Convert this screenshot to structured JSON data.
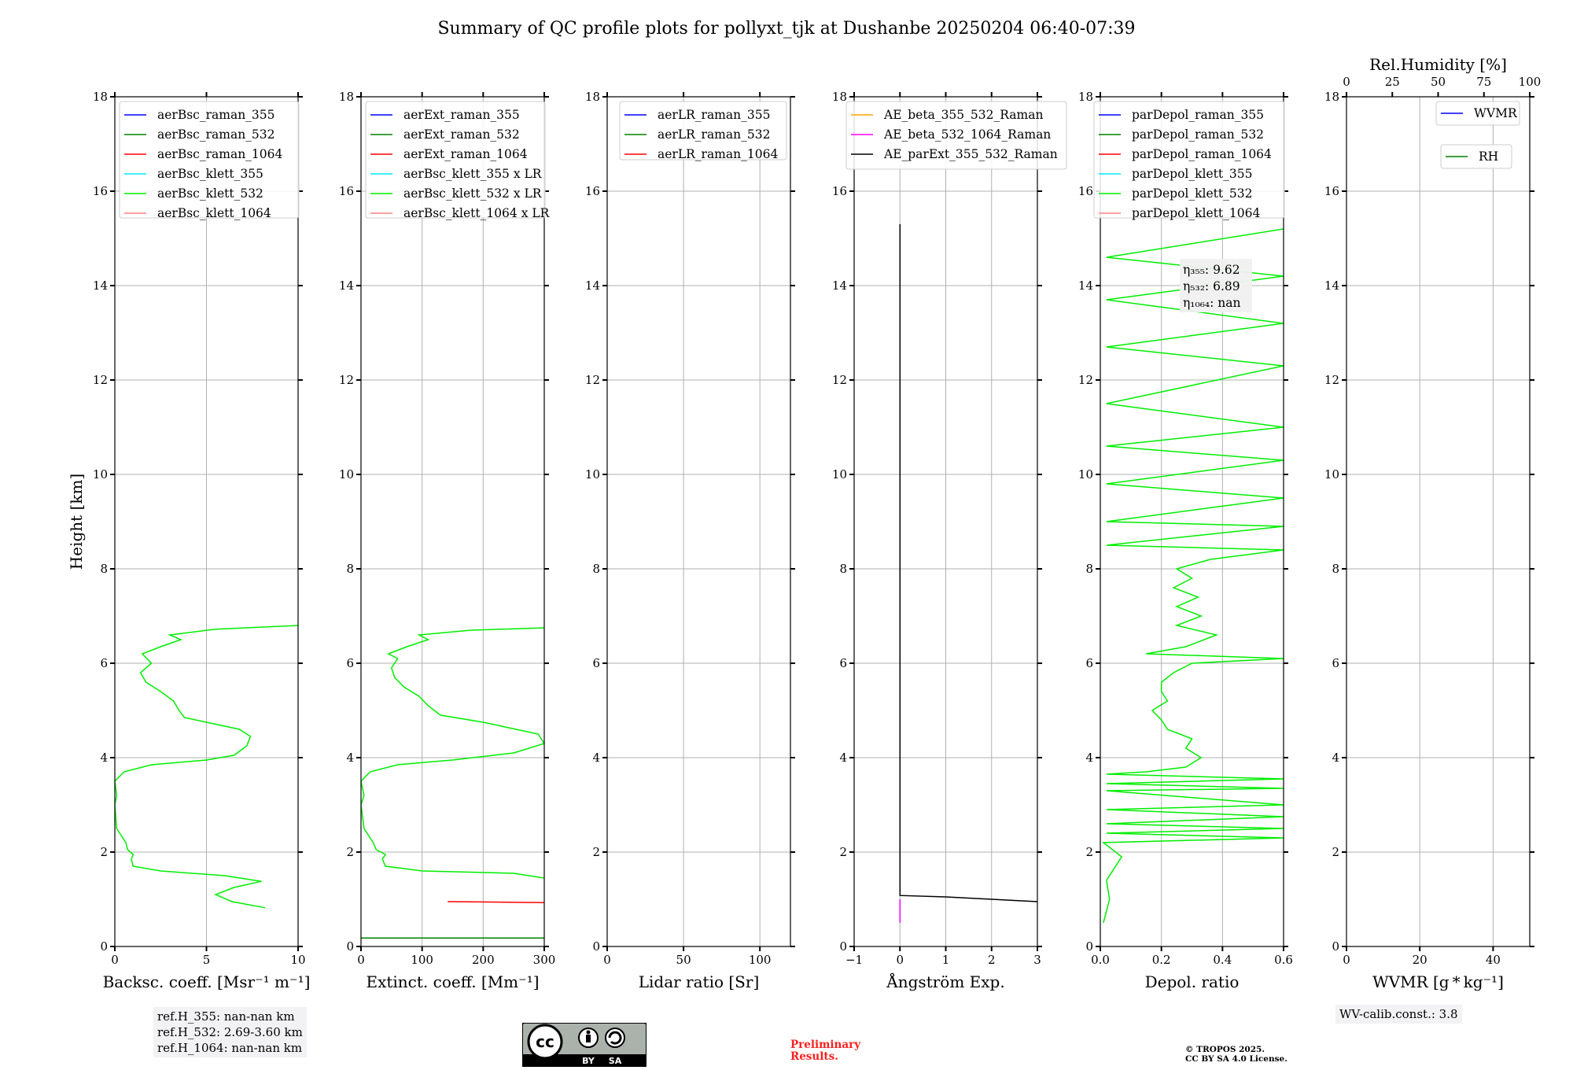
{
  "title": "Summary of QC profile plots for pollyxt_tjk at Dushanbe 20250204 06:40-07:39",
  "chart_data": [
    {
      "type": "line",
      "xlabel": "Backsc. coeff. [Msr⁻¹ m⁻¹]",
      "ylabel": "Height [km]",
      "xlim": [
        0,
        10
      ],
      "ylim": [
        0,
        18
      ],
      "xticks": [
        0,
        5,
        10
      ],
      "yticks": [
        0,
        2,
        4,
        6,
        8,
        10,
        12,
        14,
        16,
        18
      ],
      "grid": true,
      "legend": "top-left",
      "series": [
        {
          "name": "aerBsc_raman_355",
          "color": "#0000ff",
          "points": []
        },
        {
          "name": "aerBsc_raman_532",
          "color": "#008000",
          "points": []
        },
        {
          "name": "aerBsc_raman_1064",
          "color": "#ff0000",
          "points": []
        },
        {
          "name": "aerBsc_klett_355",
          "color": "#00e5ff",
          "points": []
        },
        {
          "name": "aerBsc_klett_532",
          "color": "#00ee00",
          "points": [
            [
              8.2,
              0.82
            ],
            [
              6.4,
              0.95
            ],
            [
              5.5,
              1.1
            ],
            [
              6.5,
              1.25
            ],
            [
              8.0,
              1.38
            ],
            [
              6.0,
              1.5
            ],
            [
              2.5,
              1.6
            ],
            [
              1.0,
              1.7
            ],
            [
              0.9,
              1.85
            ],
            [
              1.0,
              1.95
            ],
            [
              0.7,
              2.05
            ],
            [
              0.6,
              2.2
            ],
            [
              0.1,
              2.5
            ],
            [
              0.0,
              3.0
            ],
            [
              0.1,
              3.2
            ],
            [
              0.0,
              3.5
            ],
            [
              0.5,
              3.7
            ],
            [
              2.0,
              3.85
            ],
            [
              5.0,
              3.95
            ],
            [
              6.5,
              4.05
            ],
            [
              7.2,
              4.25
            ],
            [
              7.4,
              4.45
            ],
            [
              6.8,
              4.6
            ],
            [
              5.0,
              4.75
            ],
            [
              3.8,
              4.85
            ],
            [
              3.5,
              5.0
            ],
            [
              3.2,
              5.2
            ],
            [
              2.5,
              5.4
            ],
            [
              1.7,
              5.6
            ],
            [
              1.4,
              5.8
            ],
            [
              2.0,
              6.0
            ],
            [
              1.5,
              6.2
            ],
            [
              2.5,
              6.35
            ],
            [
              3.6,
              6.5
            ],
            [
              3.0,
              6.6
            ],
            [
              5.5,
              6.72
            ],
            [
              10.0,
              6.8
            ]
          ]
        },
        {
          "name": "aerBsc_klett_1064",
          "color": "#ff8080",
          "points": []
        }
      ]
    },
    {
      "type": "line",
      "xlabel": "Extinct. coeff. [Mm⁻¹]",
      "xlim": [
        0,
        300
      ],
      "ylim": [
        0,
        18
      ],
      "xticks": [
        0,
        100,
        200,
        300
      ],
      "yticks": [
        0,
        2,
        4,
        6,
        8,
        10,
        12,
        14,
        16,
        18
      ],
      "grid": true,
      "legend": "top-left",
      "series": [
        {
          "name": "aerExt_raman_355",
          "color": "#0000ff",
          "points": []
        },
        {
          "name": "aerExt_raman_532",
          "color": "#008000",
          "points": [
            [
              0,
              0.18
            ],
            [
              300,
              0.18
            ]
          ]
        },
        {
          "name": "aerExt_raman_1064",
          "color": "#ff0000",
          "points": [
            [
              142,
              0.95
            ],
            [
              300,
              0.93
            ]
          ]
        },
        {
          "name": "aerBsc_klett_355 x LR",
          "color": "#00e5ff",
          "points": []
        },
        {
          "name": "aerBsc_klett_532 x LR",
          "color": "#00ee00",
          "points": [
            [
              300,
              1.45
            ],
            [
              250,
              1.55
            ],
            [
              100,
              1.6
            ],
            [
              40,
              1.7
            ],
            [
              35,
              1.85
            ],
            [
              40,
              1.95
            ],
            [
              25,
              2.05
            ],
            [
              20,
              2.2
            ],
            [
              5,
              2.5
            ],
            [
              0,
              3.0
            ],
            [
              5,
              3.2
            ],
            [
              0,
              3.5
            ],
            [
              15,
              3.7
            ],
            [
              60,
              3.85
            ],
            [
              150,
              3.95
            ],
            [
              250,
              4.1
            ],
            [
              300,
              4.3
            ],
            [
              290,
              4.5
            ],
            [
              200,
              4.75
            ],
            [
              130,
              4.9
            ],
            [
              110,
              5.1
            ],
            [
              95,
              5.3
            ],
            [
              70,
              5.5
            ],
            [
              55,
              5.7
            ],
            [
              50,
              5.9
            ],
            [
              60,
              6.1
            ],
            [
              45,
              6.2
            ],
            [
              75,
              6.35
            ],
            [
              110,
              6.5
            ],
            [
              95,
              6.6
            ],
            [
              180,
              6.7
            ],
            [
              300,
              6.75
            ]
          ]
        },
        {
          "name": "aerBsc_klett_1064 x LR",
          "color": "#ff8080",
          "points": []
        }
      ]
    },
    {
      "type": "line",
      "xlabel": "Lidar ratio [Sr]",
      "xlim": [
        0,
        120
      ],
      "ylim": [
        0,
        18
      ],
      "xticks": [
        0,
        50,
        100
      ],
      "yticks": [
        0,
        2,
        4,
        6,
        8,
        10,
        12,
        14,
        16,
        18
      ],
      "grid": true,
      "legend": "top-left",
      "series": [
        {
          "name": "aerLR_raman_355",
          "color": "#0000ff",
          "points": []
        },
        {
          "name": "aerLR_raman_532",
          "color": "#008000",
          "points": []
        },
        {
          "name": "aerLR_raman_1064",
          "color": "#ff0000",
          "points": []
        }
      ]
    },
    {
      "type": "line",
      "xlabel": "Ångström Exp.",
      "xlim": [
        -1,
        3
      ],
      "ylim": [
        0,
        18
      ],
      "xticks": [
        -1,
        0,
        1,
        2,
        3
      ],
      "yticks": [
        0,
        2,
        4,
        6,
        8,
        10,
        12,
        14,
        16,
        18
      ],
      "grid": true,
      "legend": "top-left",
      "series": [
        {
          "name": "AE_beta_355_532_Raman",
          "color": "#ffa500",
          "points": []
        },
        {
          "name": "AE_beta_532_1064_Raman",
          "color": "#ff00ff",
          "points": [
            [
              0,
              0.5
            ],
            [
              0,
              1.0
            ]
          ]
        },
        {
          "name": "AE_parExt_355_532_Raman",
          "color": "#000000",
          "points": [
            [
              0,
              15.3
            ],
            [
              0,
              1.08
            ],
            [
              1.0,
              1.05
            ],
            [
              2.0,
              1.0
            ],
            [
              3.0,
              0.95
            ]
          ]
        }
      ]
    },
    {
      "type": "line",
      "xlabel": "Depol. ratio",
      "xlim": [
        0,
        0.6
      ],
      "ylim": [
        0,
        18
      ],
      "xticks": [
        0.0,
        0.2,
        0.4,
        0.6
      ],
      "yticks": [
        0,
        2,
        4,
        6,
        8,
        10,
        12,
        14,
        16,
        18
      ],
      "grid": true,
      "legend": "top-left",
      "annotations": [
        "η₃₅₅: 9.62",
        "η₅₃₂: 6.89",
        "η₁₀₆₄: nan"
      ],
      "series": [
        {
          "name": "parDepol_raman_355",
          "color": "#0000ff",
          "points": []
        },
        {
          "name": "parDepol_raman_532",
          "color": "#008000",
          "points": []
        },
        {
          "name": "parDepol_raman_1064",
          "color": "#ff0000",
          "points": []
        },
        {
          "name": "parDepol_klett_355",
          "color": "#00e5ff",
          "points": []
        },
        {
          "name": "parDepol_klett_532",
          "color": "#00ee00",
          "points": [
            [
              0.01,
              0.5
            ],
            [
              0.03,
              1.0
            ],
            [
              0.02,
              1.4
            ],
            [
              0.07,
              1.9
            ],
            [
              0.03,
              2.1
            ],
            [
              0.01,
              2.2
            ],
            [
              0.6,
              2.3
            ],
            [
              0.02,
              2.4
            ],
            [
              0.6,
              2.5
            ],
            [
              0.02,
              2.6
            ],
            [
              0.6,
              2.75
            ],
            [
              0.02,
              2.9
            ],
            [
              0.6,
              3.0
            ],
            [
              0.02,
              3.3
            ],
            [
              0.6,
              3.35
            ],
            [
              0.02,
              3.45
            ],
            [
              0.6,
              3.55
            ],
            [
              0.02,
              3.65
            ],
            [
              0.15,
              3.7
            ],
            [
              0.28,
              3.8
            ],
            [
              0.33,
              4.0
            ],
            [
              0.28,
              4.2
            ],
            [
              0.3,
              4.4
            ],
            [
              0.22,
              4.6
            ],
            [
              0.2,
              4.8
            ],
            [
              0.17,
              5.0
            ],
            [
              0.22,
              5.2
            ],
            [
              0.2,
              5.4
            ],
            [
              0.2,
              5.6
            ],
            [
              0.24,
              5.8
            ],
            [
              0.3,
              6.0
            ],
            [
              0.6,
              6.1
            ],
            [
              0.15,
              6.2
            ],
            [
              0.28,
              6.35
            ],
            [
              0.38,
              6.6
            ],
            [
              0.25,
              6.8
            ],
            [
              0.33,
              7.0
            ],
            [
              0.25,
              7.2
            ],
            [
              0.32,
              7.4
            ],
            [
              0.24,
              7.6
            ],
            [
              0.3,
              7.8
            ],
            [
              0.25,
              8.0
            ],
            [
              0.36,
              8.2
            ],
            [
              0.6,
              8.4
            ],
            [
              0.02,
              8.5
            ],
            [
              0.6,
              8.9
            ],
            [
              0.02,
              9.0
            ],
            [
              0.6,
              9.5
            ],
            [
              0.02,
              9.8
            ],
            [
              0.6,
              10.3
            ],
            [
              0.02,
              10.6
            ],
            [
              0.6,
              11.0
            ],
            [
              0.02,
              11.5
            ],
            [
              0.6,
              12.3
            ],
            [
              0.02,
              12.7
            ],
            [
              0.6,
              13.2
            ],
            [
              0.02,
              13.7
            ],
            [
              0.6,
              14.2
            ],
            [
              0.02,
              14.6
            ],
            [
              0.6,
              15.2
            ]
          ]
        },
        {
          "name": "parDepol_klett_1064",
          "color": "#ff8080",
          "points": []
        }
      ]
    },
    {
      "type": "line",
      "xlabel": "WVMR [g * kg⁻¹]",
      "x2label": "Rel.Humidity [%]",
      "xlim": [
        0,
        50
      ],
      "x2lim": [
        0,
        100
      ],
      "ylim": [
        0,
        18
      ],
      "xticks": [
        0,
        20,
        40
      ],
      "x2ticks": [
        0,
        25,
        50,
        75,
        100
      ],
      "yticks": [
        0,
        2,
        4,
        6,
        8,
        10,
        12,
        14,
        16,
        18
      ],
      "grid": true,
      "legend": "top-right",
      "series": [
        {
          "name": "WVMR",
          "color": "#0000ff",
          "points": []
        },
        {
          "name": "RH",
          "color": "#008000",
          "points": []
        }
      ]
    }
  ],
  "boxes": {
    "ref_heights": [
      "ref.H_355: nan-nan km",
      "ref.H_532: 2.69-3.60 km",
      "ref.H_1064: nan-nan km"
    ],
    "wv_calib": "WV-calib.const.: 3.8"
  },
  "footer": {
    "prelim": [
      "Preliminary",
      "Results."
    ],
    "tropos": [
      "© TROPOS 2025.",
      "CC BY SA 4.0 License."
    ],
    "cc_badge": {
      "cc": "cc",
      "by": "BY",
      "sa": "SA"
    }
  }
}
